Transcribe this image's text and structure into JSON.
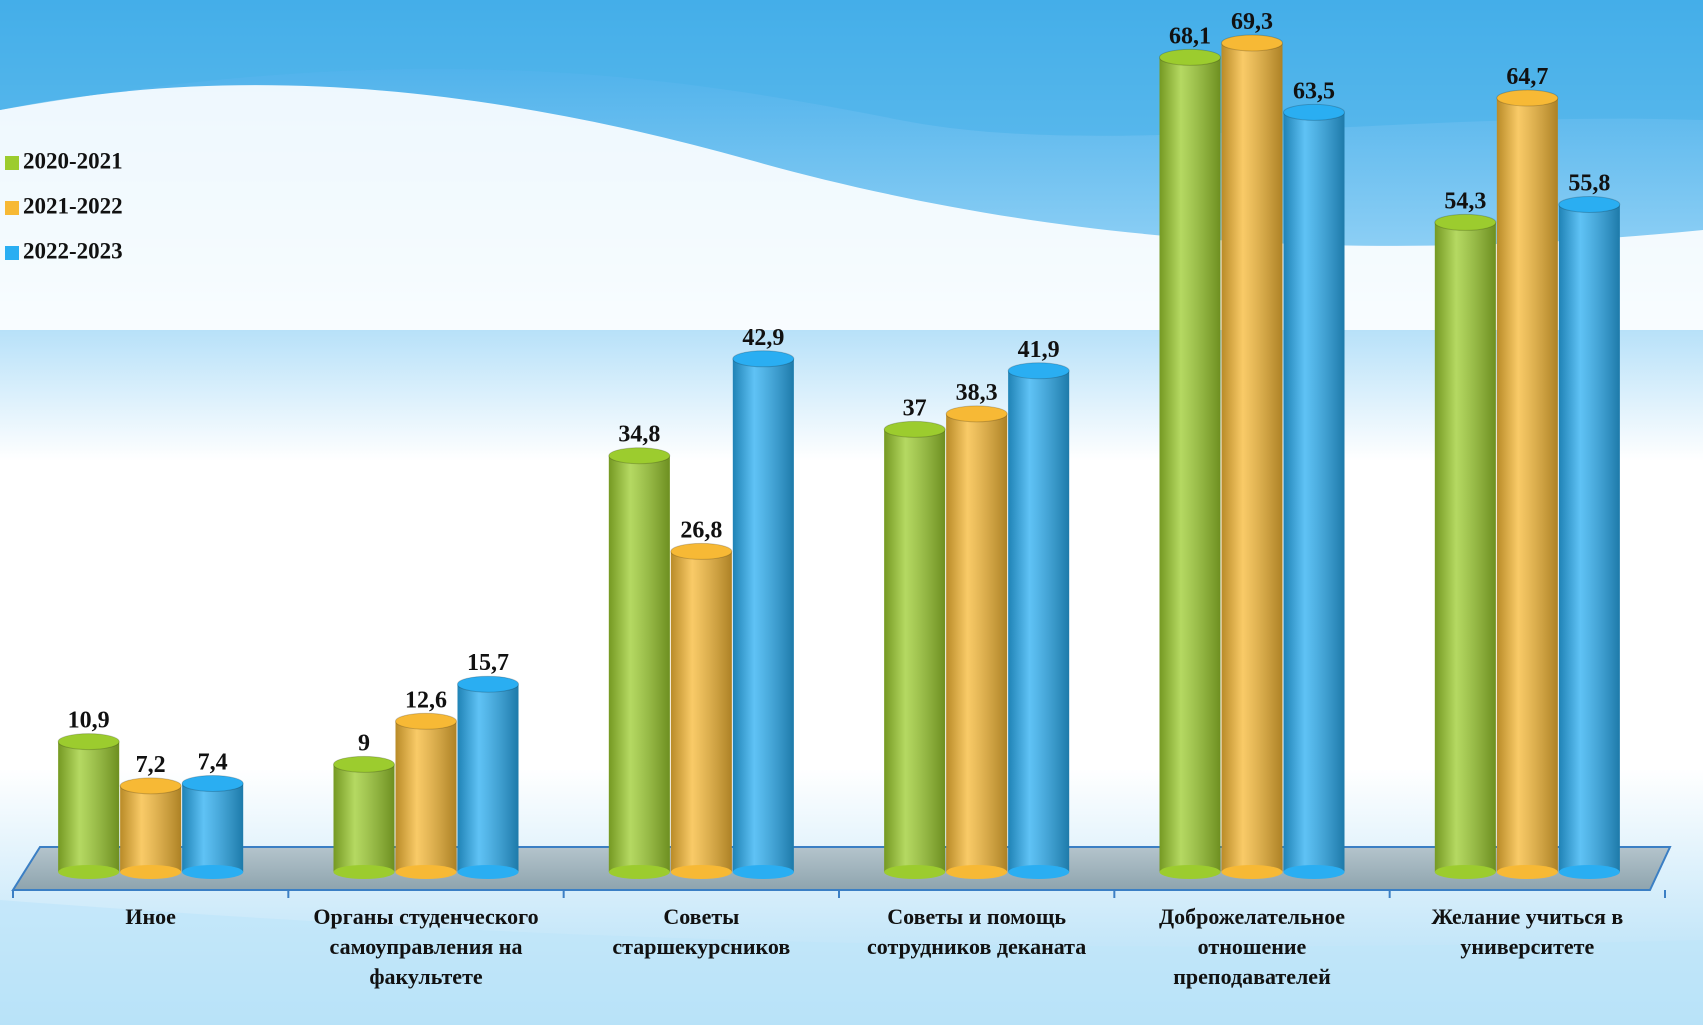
{
  "chart_data": {
    "type": "bar",
    "categories": [
      "Иное",
      "Органы студенческого самоуправления на факультете",
      "Советы старшекурсников",
      "Советы и помощь сотрудников деканата",
      "Доброжелательное отношение преподавателей",
      "Желание учиться в университете"
    ],
    "series": [
      {
        "name": "2020-2021",
        "color": "#9ccc2e",
        "values": [
          10.9,
          9,
          34.8,
          37,
          68.1,
          54.3
        ],
        "value_labels": [
          "10,9",
          "9",
          "34,8",
          "37",
          "68,1",
          "54,3"
        ]
      },
      {
        "name": "2021-2022",
        "color": "#f7b935",
        "values": [
          7.2,
          12.6,
          26.8,
          38.3,
          69.3,
          64.7
        ],
        "value_labels": [
          "7,2",
          "12,6",
          "26,8",
          "38,3",
          "69,3",
          "64,7"
        ]
      },
      {
        "name": "2022-2023",
        "color": "#2aaef2",
        "values": [
          7.4,
          15.7,
          42.9,
          41.9,
          63.5,
          55.8
        ],
        "value_labels": [
          "7,4",
          "15,7",
          "42,9",
          "41,9",
          "63,5",
          "55,8"
        ]
      }
    ],
    "legend": "left"
  }
}
